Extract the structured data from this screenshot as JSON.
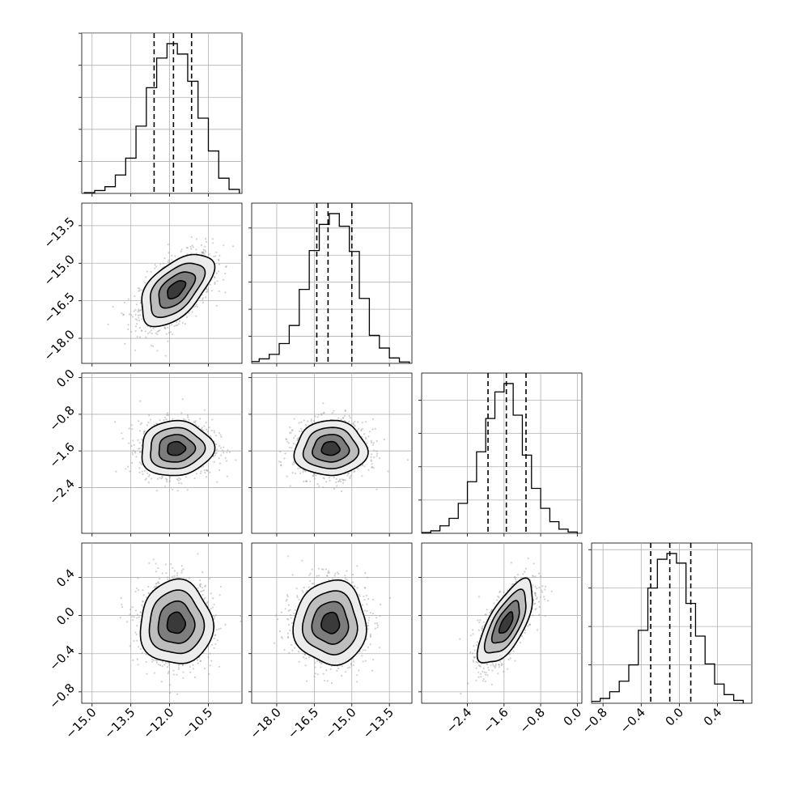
{
  "chart_data": {
    "type": "corner",
    "parameters": [
      {
        "range": [
          -15.4,
          -9.2
        ],
        "ticks": [
          -15.0,
          -13.5,
          -12.0,
          -10.5
        ],
        "tick_labels": [
          "−15.0",
          "−13.5",
          "−12.0",
          "−10.5"
        ],
        "quantiles": [
          -12.6,
          -11.85,
          -11.15
        ],
        "histogram": {
          "bins": [
            -15.1,
            -14.7,
            -14.3,
            -13.9,
            -13.5,
            -13.1,
            -12.7,
            -12.3,
            -11.9,
            -11.5,
            -11.1,
            -10.7,
            -10.3,
            -9.9,
            -9.5
          ],
          "counts": [
            0.5,
            1.8,
            4.2,
            11.5,
            22.0,
            42.0,
            66.0,
            84.5,
            93.5,
            87.0,
            70.0,
            47.0,
            26.5,
            9.5,
            2.5
          ]
        }
      },
      {
        "range": [
          -19.0,
          -12.6
        ],
        "ticks": [
          -18.0,
          -16.5,
          -15.0,
          -13.5
        ],
        "tick_labels": [
          "−18.0",
          "−16.5",
          "−15.0",
          "−13.5"
        ],
        "quantiles": [
          -16.4,
          -15.95,
          -15.0
        ],
        "histogram": {
          "bins": [
            -18.9,
            -18.5,
            -18.1,
            -17.7,
            -17.3,
            -16.9,
            -16.5,
            -16.1,
            -15.7,
            -15.3,
            -14.9,
            -14.5,
            -14.1,
            -13.7,
            -13.3,
            -12.9
          ],
          "counts": [
            1.0,
            2.5,
            5.0,
            11.0,
            21.0,
            41.0,
            62.5,
            77.0,
            83.0,
            76.0,
            62.0,
            36.0,
            15.5,
            8.5,
            3.0,
            0.8
          ]
        }
      },
      {
        "range": [
          -3.4,
          0.1
        ],
        "ticks": [
          -2.4,
          -1.6,
          -0.8,
          0.0
        ],
        "tick_labels": [
          "−2.4",
          "−1.6",
          "−0.8",
          "0.0"
        ],
        "quantiles": [
          -1.95,
          -1.55,
          -1.12
        ],
        "histogram": {
          "bins": [
            -3.3,
            -3.1,
            -2.9,
            -2.7,
            -2.5,
            -2.3,
            -2.1,
            -1.9,
            -1.7,
            -1.5,
            -1.3,
            -1.1,
            -0.9,
            -0.7,
            -0.5,
            -0.3,
            -0.1
          ],
          "counts": [
            0.5,
            1.5,
            4.5,
            9.0,
            18.0,
            31.0,
            49.0,
            69.0,
            85.0,
            90.0,
            71.0,
            47.0,
            27.0,
            15.0,
            7.0,
            2.5,
            0.8
          ]
        }
      },
      {
        "range": [
          -0.92,
          0.76
        ],
        "ticks": [
          -0.8,
          -0.4,
          0.0,
          0.4
        ],
        "tick_labels": [
          "−0.8",
          "−0.4",
          "0.0",
          "0.4"
        ],
        "quantiles": [
          -0.3,
          -0.1,
          0.12
        ],
        "histogram": {
          "bins": [
            -0.88,
            -0.78,
            -0.68,
            -0.58,
            -0.48,
            -0.38,
            -0.28,
            -0.18,
            -0.08,
            0.02,
            0.12,
            0.22,
            0.32,
            0.42,
            0.52,
            0.62
          ],
          "counts": [
            1.0,
            2.5,
            6.0,
            11.5,
            20.0,
            38.0,
            60.0,
            75.0,
            78.0,
            73.0,
            52.0,
            35.0,
            20.5,
            10.0,
            4.5,
            1.5
          ]
        }
      }
    ],
    "pairs": [
      {
        "x": 0,
        "y": 1,
        "ellipse": {
          "cx": -11.75,
          "cy": -16.05,
          "sx": 0.7,
          "sy": 0.72,
          "rho": 0.55
        }
      },
      {
        "x": 0,
        "y": 2,
        "ellipse": {
          "cx": -11.75,
          "cy": -1.55,
          "sx": 0.7,
          "sy": 0.3,
          "rho": 0.05
        }
      },
      {
        "x": 1,
        "y": 2,
        "ellipse": {
          "cx": -15.85,
          "cy": -1.55,
          "sx": 0.72,
          "sy": 0.3,
          "rho": 0.02
        }
      },
      {
        "x": 0,
        "y": 3,
        "ellipse": {
          "cx": -11.75,
          "cy": -0.08,
          "sx": 0.7,
          "sy": 0.22,
          "rho": 0.0
        }
      },
      {
        "x": 1,
        "y": 3,
        "ellipse": {
          "cx": -15.85,
          "cy": -0.08,
          "sx": 0.72,
          "sy": 0.22,
          "rho": 0.0
        }
      },
      {
        "x": 2,
        "y": 3,
        "ellipse": {
          "cx": -1.55,
          "cy": -0.08,
          "sx": 0.3,
          "sy": 0.22,
          "rho": 0.68
        }
      }
    ],
    "contour_levels": [
      0.5,
      1.0,
      1.5,
      2.0
    ],
    "colors": {
      "line": "#000000",
      "grid": "#b0b0b0",
      "points": "#9a9a9a"
    },
    "grid": true
  }
}
